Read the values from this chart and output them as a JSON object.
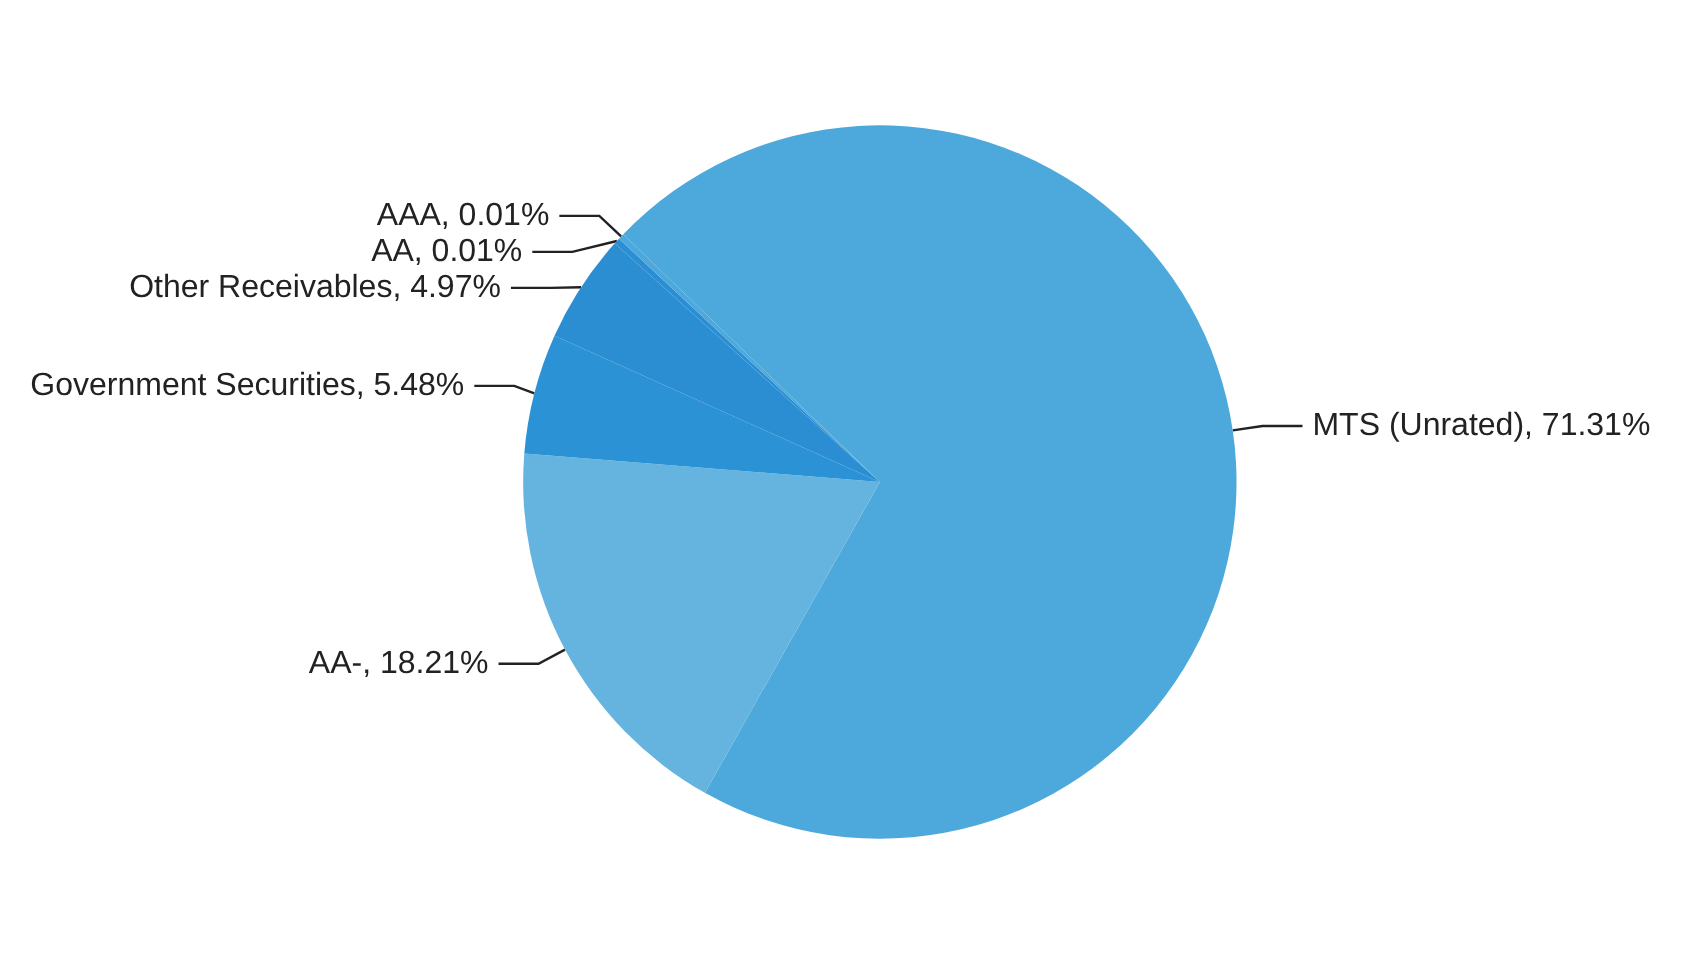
{
  "chart_data": {
    "type": "pie",
    "categories": [
      "MTS (Unrated)",
      "AA-",
      "Government Securities",
      "Other Receivables",
      "AA",
      "AAA"
    ],
    "values": [
      71.31,
      18.21,
      5.48,
      4.97,
      0.01,
      0.01
    ],
    "colors": [
      "#4da9db",
      "#65b3df",
      "#2a92d5",
      "#2b8ed3",
      "#2b8ed3",
      "#4da9db"
    ],
    "value_labels": [
      ", 71.31%",
      ", 18.21%",
      ", 5.48%",
      ", 4.97%",
      ", 0.01%",
      ", 0.01%"
    ],
    "legend": false
  }
}
